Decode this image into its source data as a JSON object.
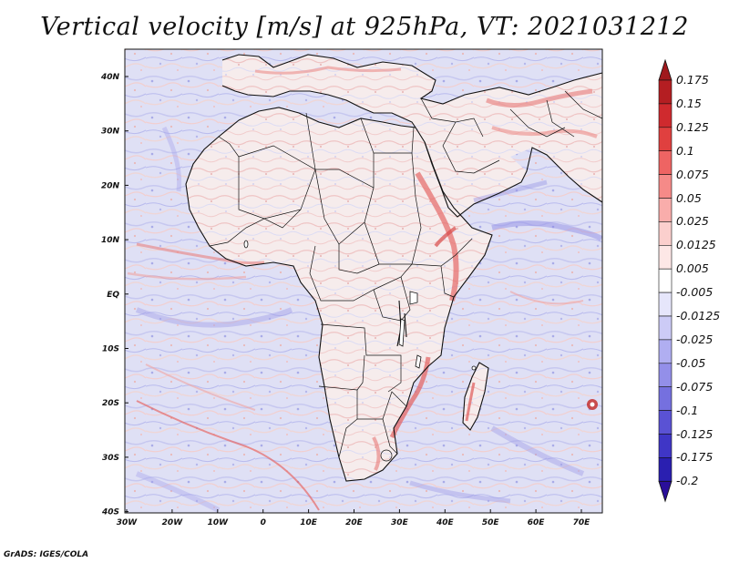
{
  "title": "Vertical velocity [m/s] at 925hPa, VT: 2021031212",
  "footer": "GrADS: IGES/COLA",
  "lat_labels": [
    "40N",
    "30N",
    "20N",
    "10N",
    "EQ",
    "10S",
    "20S",
    "30S",
    "40S"
  ],
  "lon_labels": [
    "30W",
    "20W",
    "10W",
    "0",
    "10E",
    "20E",
    "30E",
    "40E",
    "50E",
    "60E",
    "70E"
  ],
  "colorbar": {
    "labels": [
      "0.175",
      "0.15",
      "0.125",
      "0.1",
      "0.075",
      "0.05",
      "0.025",
      "0.0125",
      "0.005",
      "-0.005",
      "-0.0125",
      "-0.025",
      "-0.05",
      "-0.075",
      "-0.1",
      "-0.125",
      "-0.175",
      "-0.2"
    ],
    "colors": [
      "#b41e22",
      "#cf2a2e",
      "#e0403f",
      "#ee6463",
      "#f58a88",
      "#f9adab",
      "#fbcfcd",
      "#fde7e6",
      "#ffffff",
      "#e6e6fb",
      "#cccbf6",
      "#b0aef1",
      "#938fe9",
      "#7570df",
      "#5a52d4",
      "#3f36c6",
      "#2a1fb0"
    ],
    "over_color": "#a0191d",
    "under_color": "#2a0f9a"
  },
  "colors": {
    "land_pos": "#f3c4c2",
    "ocean_neg": "#d2d4f2",
    "border": "#111111"
  }
}
